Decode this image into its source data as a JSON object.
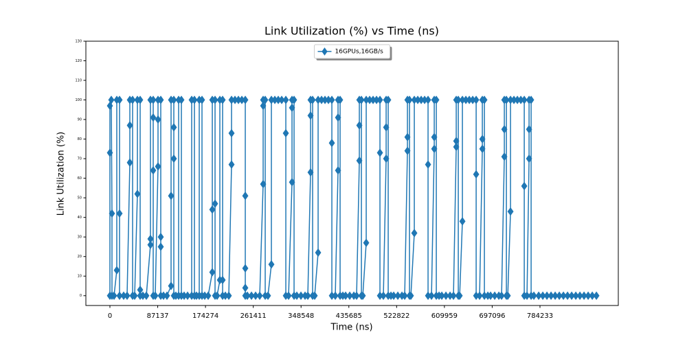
{
  "chart_data": {
    "type": "line",
    "title": "Link Utilization (%) vs Time (ns)",
    "x_label": "Time (ns)",
    "y_label": "Link Utilization (%)",
    "xlim": [
      -43847,
      927050
    ],
    "ylim": [
      -5,
      130
    ],
    "xticks": [
      0,
      87137,
      174274,
      261411,
      348548,
      435685,
      522822,
      609959,
      697096,
      784233
    ],
    "yticks": [
      0,
      10,
      20,
      30,
      40,
      50,
      60,
      70,
      80,
      90,
      100,
      110,
      120,
      130
    ],
    "legend": "upper center",
    "marker": "diamond",
    "x": [
      0,
      0,
      0,
      2506,
      3759,
      3759,
      7518,
      12530,
      12530,
      17542,
      17542,
      17542,
      25060,
      31325,
      36337,
      36337,
      36337,
      41349,
      41349,
      45108,
      50120,
      50120,
      55132,
      55132,
      55132,
      60144,
      66409,
      73927,
      73927,
      73927,
      78939,
      78939,
      78939,
      78939,
      82698,
      87710,
      87710,
      87710,
      92722,
      92722,
      92722,
      92722,
      97734,
      103999,
      111517,
      111517,
      111517,
      116529,
      116529,
      116529,
      116529,
      120288,
      125300,
      125300,
      130312,
      130312,
      135324,
      141589,
      149107,
      149107,
      154119,
      154119,
      157878,
      162890,
      162890,
      167902,
      167902,
      172914,
      179179,
      186697,
      186697,
      186697,
      191709,
      191709,
      191709,
      195468,
      200480,
      200480,
      205492,
      205492,
      205492,
      210504,
      216769,
      221781,
      221781,
      221781,
      228046,
      234311,
      240576,
      246841,
      246841,
      246841,
      246841,
      246841,
      250600,
      258118,
      265636,
      273154,
      279419,
      279419,
      279419,
      283178,
      283178,
      288190,
      294455,
      294455,
      300720,
      306985,
      313250,
      320768,
      320768,
      320768,
      325780,
      332045,
      332045,
      332045,
      335804,
      335804,
      340816,
      348334,
      355852,
      360864,
      365876,
      365876,
      365876,
      369635,
      369635,
      373394,
      379659,
      379659,
      385924,
      392189,
      398454,
      404719,
      404719,
      404719,
      410984,
      415996,
      415996,
      415996,
      419755,
      419755,
      424767,
      429779,
      437297,
      444815,
      449827,
      454839,
      454839,
      454839,
      458598,
      458598,
      461104,
      467369,
      467369,
      473634,
      479899,
      486164,
      492429,
      492429,
      492429,
      498694,
      503706,
      503706,
      503706,
      507465,
      507465,
      512477,
      517489,
      525007,
      532525,
      537537,
      542549,
      542549,
      542549,
      546308,
      546308,
      548814,
      555079,
      555079,
      561344,
      567609,
      573874,
      580139,
      580139,
      580139,
      586404,
      591416,
      591416,
      591416,
      595175,
      595175,
      600187,
      605199,
      612717,
      620235,
      626500,
      631512,
      631512,
      631512,
      635271,
      635271,
      637777,
      642789,
      642789,
      649054,
      655319,
      661584,
      667849,
      667849,
      667849,
      674114,
      679126,
      679126,
      679126,
      682885,
      682885,
      689150,
      694162,
      701680,
      709198,
      714210,
      719222,
      719222,
      719222,
      722981,
      722981,
      725487,
      730499,
      730499,
      736764,
      743029,
      749294,
      755559,
      755559,
      755559,
      760571,
      764330,
      764330,
      764330,
      768089,
      768089,
      773101,
      781872,
      789390,
      796908,
      804426,
      811944,
      819462,
      826980,
      834498,
      842016,
      849534,
      857052,
      864570,
      872088,
      879606,
      887124
    ],
    "series": [
      {
        "name": "16GPUs,16GB/s",
        "color": "#1f77b4",
        "values": [
          0,
          73,
          97,
          100,
          42,
          0,
          0,
          13,
          100,
          100,
          42,
          0,
          0,
          0,
          68,
          87,
          100,
          100,
          0,
          0,
          52,
          100,
          100,
          3,
          0,
          0,
          0,
          26,
          29,
          100,
          100,
          91,
          64,
          0,
          0,
          66,
          90,
          100,
          100,
          30,
          25,
          0,
          0,
          0,
          5,
          51,
          100,
          100,
          86,
          70,
          0,
          0,
          0,
          100,
          100,
          0,
          0,
          0,
          0,
          100,
          100,
          0,
          0,
          0,
          100,
          100,
          0,
          0,
          0,
          12,
          44,
          100,
          100,
          47,
          0,
          0,
          8,
          100,
          100,
          8,
          0,
          0,
          0,
          67,
          83,
          100,
          100,
          100,
          100,
          100,
          51,
          14,
          4,
          0,
          0,
          0,
          0,
          0,
          57,
          97,
          100,
          100,
          0,
          0,
          16,
          100,
          100,
          100,
          100,
          100,
          83,
          0,
          0,
          58,
          96,
          100,
          100,
          0,
          0,
          0,
          0,
          0,
          63,
          92,
          100,
          100,
          0,
          0,
          22,
          100,
          100,
          100,
          100,
          100,
          78,
          0,
          0,
          64,
          91,
          100,
          100,
          0,
          0,
          0,
          0,
          0,
          0,
          69,
          87,
          100,
          100,
          0,
          0,
          27,
          100,
          100,
          100,
          100,
          100,
          73,
          0,
          0,
          70,
          86,
          100,
          100,
          0,
          0,
          0,
          0,
          0,
          0,
          74,
          81,
          100,
          100,
          0,
          0,
          32,
          100,
          100,
          100,
          100,
          100,
          67,
          0,
          0,
          75,
          81,
          100,
          100,
          0,
          0,
          0,
          0,
          0,
          0,
          76,
          79,
          100,
          100,
          0,
          0,
          38,
          100,
          100,
          100,
          100,
          100,
          62,
          0,
          0,
          75,
          80,
          100,
          100,
          0,
          0,
          0,
          0,
          0,
          0,
          71,
          85,
          100,
          100,
          0,
          0,
          43,
          100,
          100,
          100,
          100,
          100,
          56,
          0,
          0,
          70,
          85,
          100,
          100,
          0,
          0,
          0,
          0,
          0,
          0,
          0,
          0,
          0,
          0,
          0,
          0,
          0,
          0,
          0,
          0,
          0
        ]
      }
    ]
  }
}
